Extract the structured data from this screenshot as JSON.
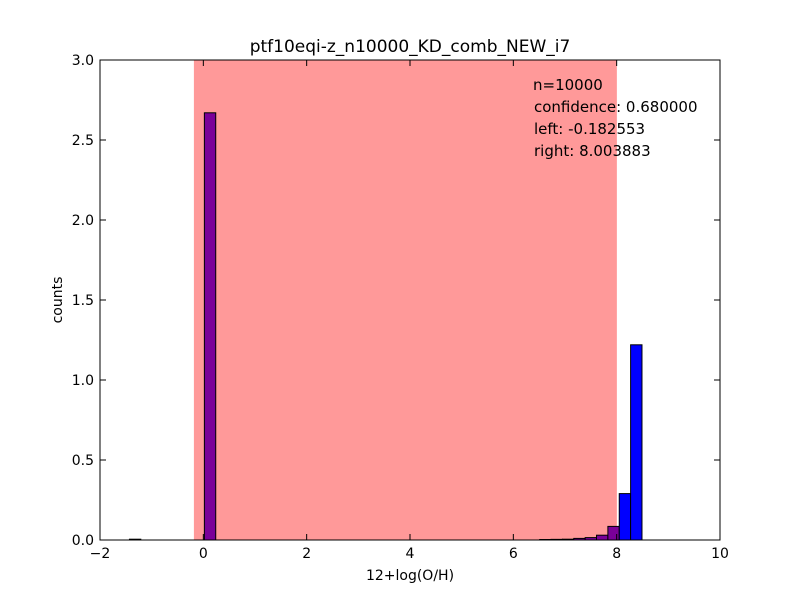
{
  "chart_data": {
    "type": "bar",
    "title": "ptf10eqi-z_n10000_KD_comb_NEW_i7",
    "xlabel": "12+log(O/H)",
    "ylabel": "counts",
    "xlim": [
      -2,
      10
    ],
    "ylim": [
      0,
      3.0
    ],
    "xticks": [
      -2,
      0,
      2,
      4,
      6,
      8,
      10
    ],
    "xtick_labels": [
      "−2",
      "0",
      "2",
      "4",
      "6",
      "8",
      "10"
    ],
    "yticks": [
      0,
      0.5,
      1.0,
      1.5,
      2.0,
      2.5,
      3.0
    ],
    "ytick_labels": [
      "0.0",
      "0.5",
      "1.0",
      "1.5",
      "2.0",
      "2.5",
      "3.0"
    ],
    "confidence_band": {
      "left": -0.182553,
      "right": 8.003883,
      "color": "#ff9999"
    },
    "annotations": [
      "n=10000",
      "confidence: 0.680000",
      "left: -0.182553",
      "right: 8.003883"
    ],
    "bin_width": 0.22,
    "series": [
      {
        "color": "#7a0099",
        "bins": [
          {
            "x": -1.32,
            "value": 0.005
          },
          {
            "x": 0.13,
            "value": 2.67
          },
          {
            "x": 6.62,
            "value": 0.003
          },
          {
            "x": 6.84,
            "value": 0.004
          },
          {
            "x": 7.06,
            "value": 0.005
          },
          {
            "x": 7.28,
            "value": 0.01
          },
          {
            "x": 7.5,
            "value": 0.015
          },
          {
            "x": 7.72,
            "value": 0.03
          },
          {
            "x": 7.94,
            "value": 0.085
          }
        ]
      },
      {
        "color": "#0000ff",
        "bins": [
          {
            "x": 8.16,
            "value": 0.29
          },
          {
            "x": 8.38,
            "value": 1.22
          }
        ]
      }
    ]
  }
}
